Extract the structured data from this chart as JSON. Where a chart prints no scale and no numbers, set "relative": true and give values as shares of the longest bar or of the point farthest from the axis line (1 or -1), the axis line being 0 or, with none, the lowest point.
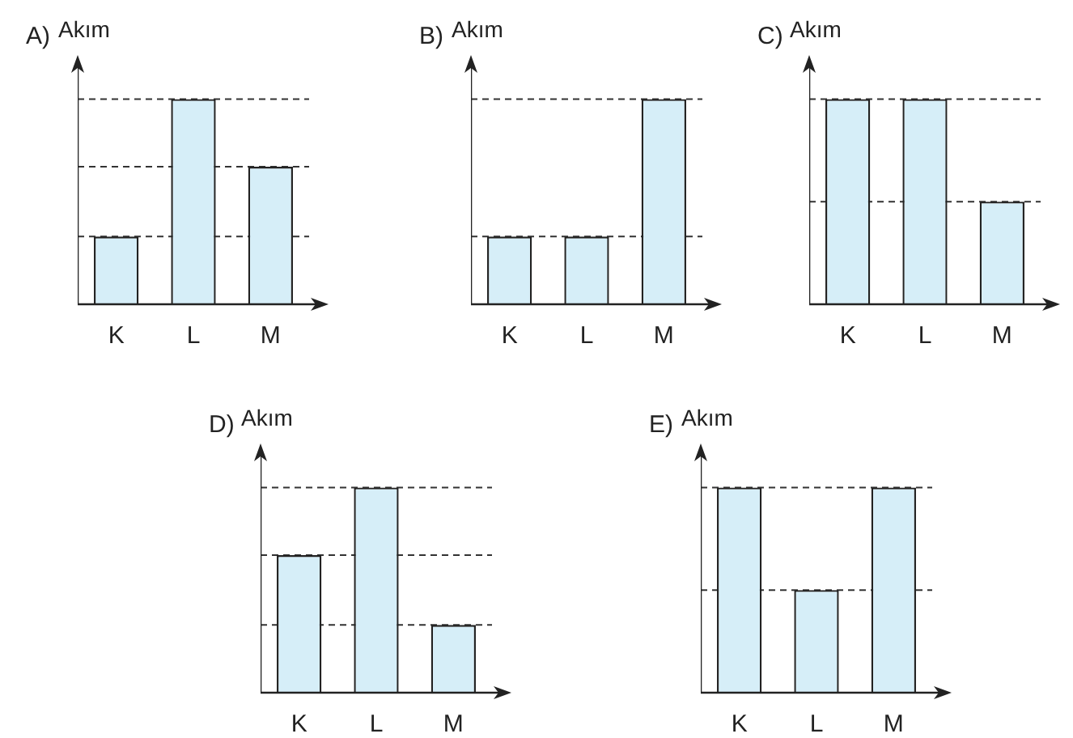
{
  "chart_data": [
    {
      "type": "bar",
      "title": "A)",
      "ylabel": "Akım",
      "categories": [
        "K",
        "L",
        "M"
      ],
      "values": [
        0.33,
        1,
        0.67
      ],
      "color": "#d6eef8",
      "relative": true,
      "ref_lines": [
        {
          "axis": "y",
          "value": 0.33
        },
        {
          "axis": "y",
          "value": 0.67
        },
        {
          "axis": "y",
          "value": 1
        }
      ]
    },
    {
      "type": "bar",
      "title": "B)",
      "ylabel": "Akım",
      "categories": [
        "K",
        "L",
        "M"
      ],
      "values": [
        0.33,
        0.33,
        1
      ],
      "color": "#d6eef8",
      "relative": true,
      "ref_lines": [
        {
          "axis": "y",
          "value": 0.33
        },
        {
          "axis": "y",
          "value": 1
        }
      ]
    },
    {
      "type": "bar",
      "title": "C)",
      "ylabel": "Akım",
      "categories": [
        "K",
        "L",
        "M"
      ],
      "values": [
        1,
        1,
        0.5
      ],
      "color": "#d6eef8",
      "relative": true,
      "ref_lines": [
        {
          "axis": "y",
          "value": 0.5
        },
        {
          "axis": "y",
          "value": 1
        }
      ]
    },
    {
      "type": "bar",
      "title": "D)",
      "ylabel": "Akım",
      "categories": [
        "K",
        "L",
        "M"
      ],
      "values": [
        0.67,
        1,
        0.33
      ],
      "color": "#d6eef8",
      "relative": true,
      "ref_lines": [
        {
          "axis": "y",
          "value": 0.33
        },
        {
          "axis": "y",
          "value": 0.67
        },
        {
          "axis": "y",
          "value": 1
        }
      ]
    },
    {
      "type": "bar",
      "title": "E)",
      "ylabel": "Akım",
      "categories": [
        "K",
        "L",
        "M"
      ],
      "values": [
        1,
        0.5,
        1
      ],
      "color": "#d6eef8",
      "relative": true,
      "ref_lines": [
        {
          "axis": "y",
          "value": 0.5
        },
        {
          "axis": "y",
          "value": 1
        }
      ]
    }
  ]
}
